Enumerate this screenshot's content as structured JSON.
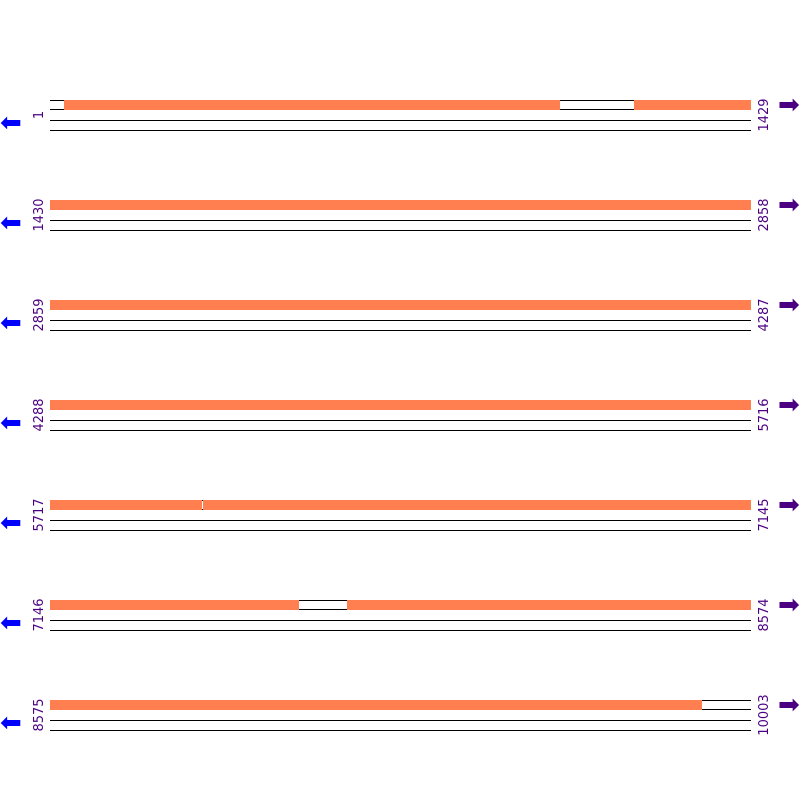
{
  "colors": {
    "covered": "#ff7f50",
    "label": "#4b0082",
    "left_arrow": "#0000ff",
    "right_arrow": "#4b0082"
  },
  "icons": {
    "left": "arrow-left-icon",
    "right": "arrow-right-icon"
  },
  "rows": [
    {
      "start": "1",
      "end": "1429",
      "s": 1,
      "e": 1429,
      "gaps": [
        [
          1,
          29
        ],
        [
          1040,
          1190
        ]
      ]
    },
    {
      "start": "1430",
      "end": "2858",
      "s": 1430,
      "e": 2858,
      "gaps": []
    },
    {
      "start": "2859",
      "end": "4287",
      "s": 2859,
      "e": 4287,
      "gaps": []
    },
    {
      "start": "4288",
      "end": "5716",
      "s": 4288,
      "e": 5716,
      "gaps": []
    },
    {
      "start": "5717",
      "end": "7145",
      "s": 5717,
      "e": 7145,
      "gaps": [
        [
          6027,
          6028
        ]
      ]
    },
    {
      "start": "7146",
      "end": "8574",
      "s": 7146,
      "e": 8574,
      "gaps": [
        [
          7654,
          7750
        ]
      ]
    },
    {
      "start": "8575",
      "end": "10003",
      "s": 8575,
      "e": 10003,
      "gaps": [
        [
          9904,
          10003
        ]
      ]
    }
  ]
}
